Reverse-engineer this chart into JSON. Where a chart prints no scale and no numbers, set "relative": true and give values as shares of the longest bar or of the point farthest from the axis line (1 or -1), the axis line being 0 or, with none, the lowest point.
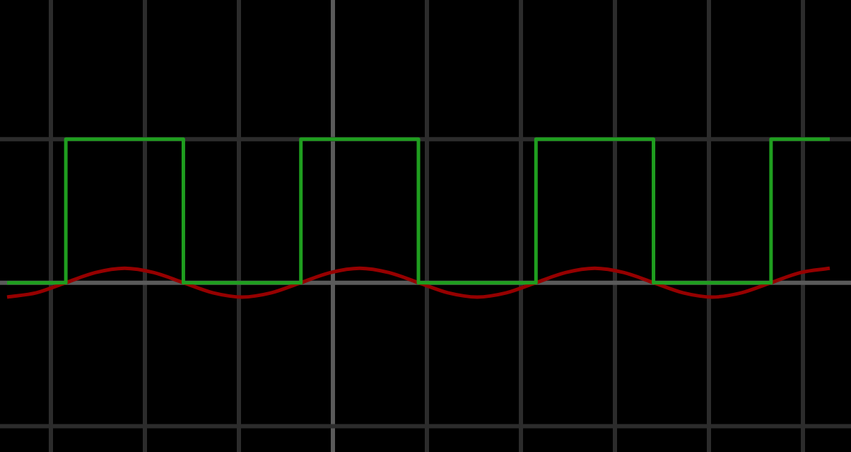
{
  "chart_data": {
    "type": "line",
    "relative": true,
    "grid": true,
    "legend": false,
    "marker": "none",
    "line_style": "solid",
    "categories": [
      null,
      null,
      null,
      null,
      null,
      null,
      null,
      null,
      null,
      null,
      null,
      null,
      null,
      null,
      null,
      null,
      null,
      null,
      null,
      null,
      null,
      null,
      null,
      null,
      null,
      null,
      null,
      null,
      null
    ],
    "series": [
      {
        "type": "step",
        "color": "#1f9e1f",
        "values": [
          0,
          0,
          1,
          1,
          1,
          1,
          0,
          0,
          0,
          0,
          1,
          1,
          1,
          1,
          0,
          0,
          0,
          0,
          1,
          1,
          1,
          1,
          0,
          0,
          0,
          0,
          1,
          1,
          1
        ]
      },
      {
        "color": "#960000",
        "values": [
          -0.1,
          -0.07,
          0,
          0.07,
          0.1,
          0.07,
          0,
          -0.07,
          -0.1,
          -0.07,
          0,
          0.07,
          0.1,
          0.07,
          0,
          -0.07,
          -0.1,
          -0.07,
          0,
          0.07,
          0.1,
          0.07,
          0,
          -0.07,
          -0.1,
          -0.07,
          0,
          0.07,
          0.1
        ]
      }
    ]
  }
}
